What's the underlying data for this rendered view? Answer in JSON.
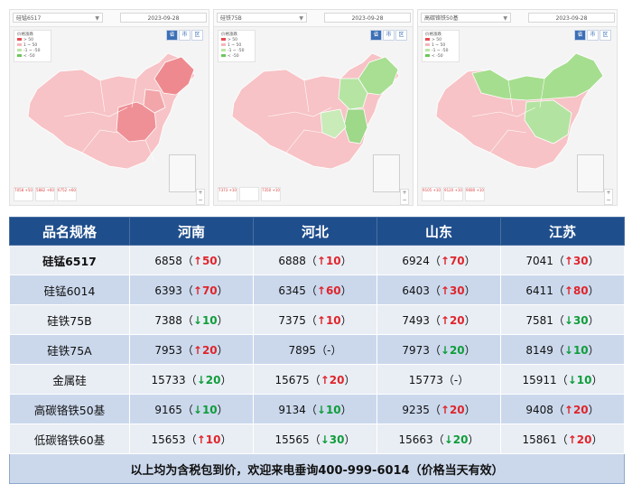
{
  "maps": [
    {
      "product": "硅锰6517",
      "date": "2023-09-28",
      "tabs": [
        "省",
        "市",
        "区"
      ],
      "legend_title": "价格涨跌",
      "legend": [
        "> 50",
        "1 ~ 50",
        "-1 ~ -50",
        "< -50"
      ],
      "bottom": [
        "7058 +50",
        "5882 +60",
        "6752 +60"
      ]
    },
    {
      "product": "硅铁75B",
      "date": "2023-09-28",
      "tabs": [
        "省",
        "市",
        "区"
      ],
      "legend_title": "价格涨跌",
      "legend": [
        "> 50",
        "1 ~ 50",
        "-1 ~ -50",
        "< -50"
      ],
      "bottom": [
        "7373 +10",
        "",
        "7350 +10"
      ]
    },
    {
      "product": "高碳铬铁50基",
      "date": "2023-09-28",
      "tabs": [
        "省",
        "市",
        "区"
      ],
      "legend_title": "价格涨跌",
      "legend": [
        "> 50",
        "1 ~ 50",
        "-1 ~ -50",
        "< -50"
      ],
      "bottom": [
        "9105 +10",
        "9120 +10",
        "9080 +10"
      ]
    }
  ],
  "colors": {
    "header": "#1f4e8c",
    "row_light": "#e9eef5",
    "row_dark": "#cbd8ec",
    "up": "#e0252b",
    "down": "#0f9d3a"
  },
  "table": {
    "headers": [
      "品名规格",
      "河南",
      "河北",
      "山东",
      "江苏"
    ],
    "rows": [
      {
        "name": "硅锰6517",
        "bold": true,
        "cells": [
          {
            "price": "6858",
            "dir": "up",
            "chg": "50"
          },
          {
            "price": "6888",
            "dir": "up",
            "chg": "10"
          },
          {
            "price": "6924",
            "dir": "up",
            "chg": "70"
          },
          {
            "price": "7041",
            "dir": "up",
            "chg": "30"
          }
        ]
      },
      {
        "name": "硅锰6014",
        "bold": false,
        "cells": [
          {
            "price": "6393",
            "dir": "up",
            "chg": "70"
          },
          {
            "price": "6345",
            "dir": "up",
            "chg": "60"
          },
          {
            "price": "6403",
            "dir": "up",
            "chg": "30"
          },
          {
            "price": "6411",
            "dir": "up",
            "chg": "80"
          }
        ]
      },
      {
        "name": "硅铁75B",
        "bold": false,
        "cells": [
          {
            "price": "7388",
            "dir": "down",
            "chg": "10"
          },
          {
            "price": "7375",
            "dir": "up",
            "chg": "10"
          },
          {
            "price": "7493",
            "dir": "up",
            "chg": "20"
          },
          {
            "price": "7581",
            "dir": "down",
            "chg": "30"
          }
        ]
      },
      {
        "name": "硅铁75A",
        "bold": false,
        "cells": [
          {
            "price": "7953",
            "dir": "up",
            "chg": "20"
          },
          {
            "price": "7895",
            "dir": "flat",
            "chg": "-"
          },
          {
            "price": "7973",
            "dir": "down",
            "chg": "20"
          },
          {
            "price": "8149",
            "dir": "down",
            "chg": "10"
          }
        ]
      },
      {
        "name": "金属硅",
        "bold": false,
        "cells": [
          {
            "price": "15733",
            "dir": "down",
            "chg": "20"
          },
          {
            "price": "15675",
            "dir": "up",
            "chg": "20"
          },
          {
            "price": "15773",
            "dir": "flat",
            "chg": "-"
          },
          {
            "price": "15911",
            "dir": "down",
            "chg": "10"
          }
        ]
      },
      {
        "name": "高碳铬铁50基",
        "bold": false,
        "cells": [
          {
            "price": "9165",
            "dir": "down",
            "chg": "10"
          },
          {
            "price": "9134",
            "dir": "down",
            "chg": "10"
          },
          {
            "price": "9235",
            "dir": "up",
            "chg": "20"
          },
          {
            "price": "9408",
            "dir": "up",
            "chg": "20"
          }
        ]
      },
      {
        "name": "低碳铬铁60基",
        "bold": false,
        "cells": [
          {
            "price": "15653",
            "dir": "up",
            "chg": "10"
          },
          {
            "price": "15565",
            "dir": "down",
            "chg": "30"
          },
          {
            "price": "15663",
            "dir": "down",
            "chg": "20"
          },
          {
            "price": "15861",
            "dir": "up",
            "chg": "20"
          }
        ]
      }
    ],
    "footer": "以上均为含税包到价，欢迎来电垂询400-999-6014（价格当天有效）"
  }
}
